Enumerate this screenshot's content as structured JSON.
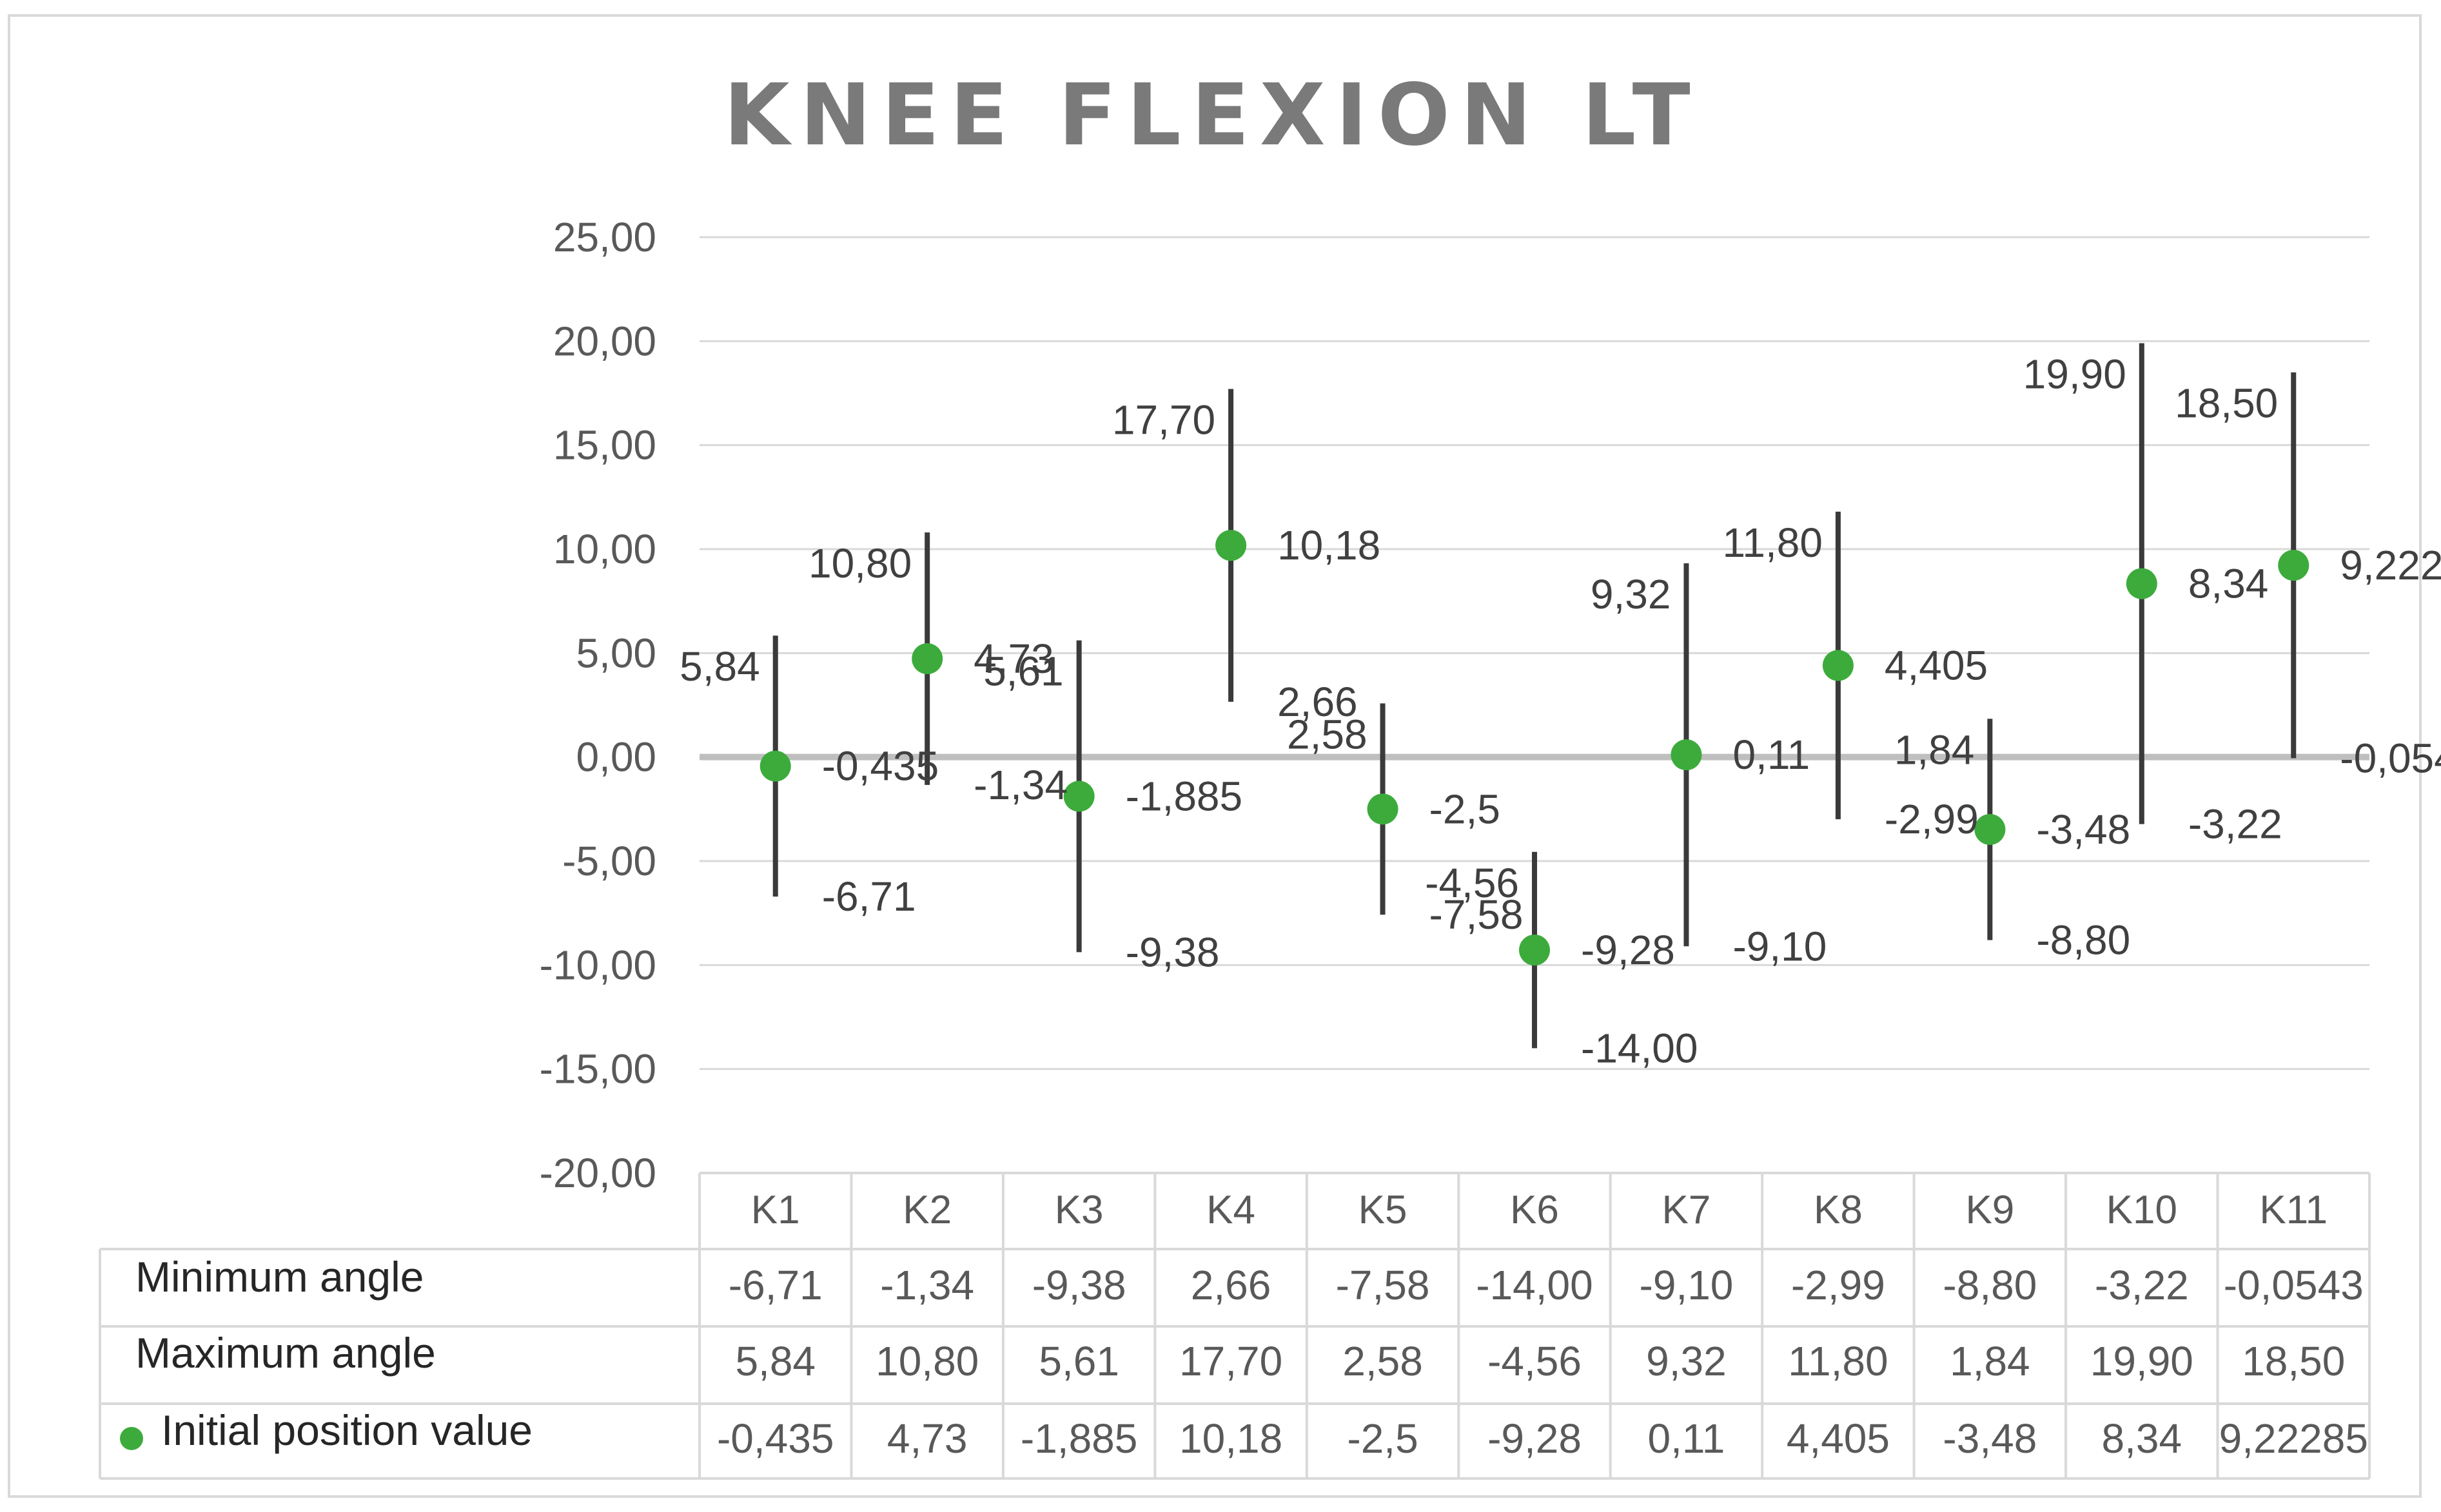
{
  "chart_data": {
    "type": "scatter",
    "title": "KNEE FLEXION LT",
    "ylim": [
      -20,
      25
    ],
    "yticks": [
      "25,00",
      "20,00",
      "15,00",
      "10,00",
      "5,00",
      "0,00",
      "-5,00",
      "-10,00",
      "-15,00",
      "-20,00"
    ],
    "ytick_values": [
      25,
      20,
      15,
      10,
      5,
      0,
      -5,
      -10,
      -15,
      -20
    ],
    "grid": true,
    "categories": [
      "K1",
      "K2",
      "K3",
      "K4",
      "K5",
      "K6",
      "K7",
      "K8",
      "K9",
      "K10",
      "K11"
    ],
    "series": [
      {
        "name": "Minimum angle",
        "values": [
          -6.71,
          -1.34,
          -9.38,
          2.66,
          -7.58,
          -14.0,
          -9.1,
          -2.99,
          -8.8,
          -3.22,
          -0.0543
        ],
        "labels": [
          "-6,71",
          "-1,34",
          "-9,38",
          "2,66",
          "-7,58",
          "-14,00",
          "-9,10",
          "-2,99",
          "-8,80",
          "-3,22",
          "-0,0543"
        ]
      },
      {
        "name": "Maximum angle",
        "values": [
          5.84,
          10.8,
          5.61,
          17.7,
          2.58,
          -4.56,
          9.32,
          11.8,
          1.84,
          19.9,
          18.5
        ],
        "labels": [
          "5,84",
          "10,80",
          "5,61",
          "17,70",
          "2,58",
          "-4,56",
          "9,32",
          "11,80",
          "1,84",
          "19,90",
          "18,50"
        ]
      },
      {
        "name": "Initial position value",
        "values": [
          -0.435,
          4.73,
          -1.885,
          10.18,
          -2.5,
          -9.28,
          0.11,
          4.405,
          -3.48,
          8.34,
          9.22285
        ],
        "labels": [
          "-0,435",
          "4,73",
          "-1,885",
          "10,18",
          "-2,5",
          "-9,28",
          "0,11",
          "4,405",
          "-3,48",
          "8,34",
          "9,22285"
        ],
        "color": "#3cab3c"
      }
    ],
    "bar_color": "#3a3a3a",
    "legend": "data-table-below"
  }
}
